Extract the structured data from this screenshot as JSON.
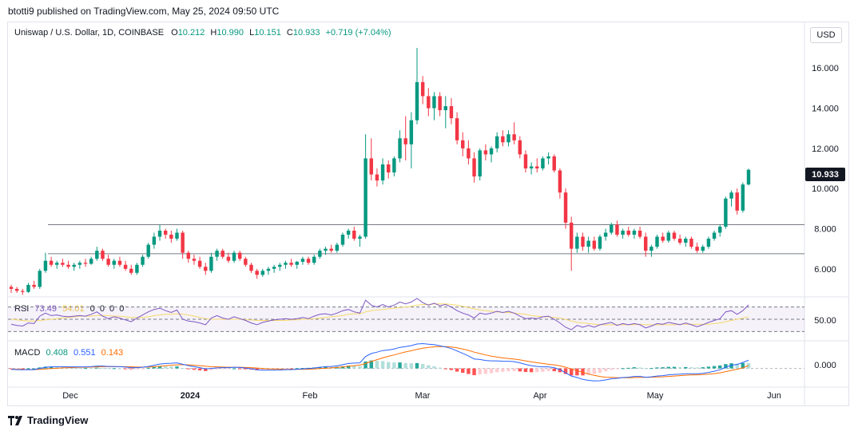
{
  "header": {
    "published": "btotti9 published on TradingView.com, May 25, 2024 09:50 UTC"
  },
  "legend": {
    "symbol": "Uniswap / U.S. Dollar, 1D, COINBASE",
    "open_label": "O",
    "open": "10.212",
    "high_label": "H",
    "high": "10.990",
    "low_label": "L",
    "low": "10.151",
    "close_label": "C",
    "close": "10.933",
    "change": "+0.719 (+7.04%)"
  },
  "currency_button": "USD",
  "last_price_tag": "10.933",
  "rsi": {
    "name": "RSI",
    "value1": "73.49",
    "value2": "54.01",
    "zeros": "0  0  0  0",
    "axis_label": "50.00"
  },
  "macd": {
    "name": "MACD",
    "value1": "0.408",
    "value2": "0.551",
    "value3": "0.143",
    "axis_label": "0.000"
  },
  "footer": {
    "brand": "TradingView"
  },
  "colors": {
    "up": "#089981",
    "down": "#f23645",
    "rsi_line": "#7e57c2",
    "rsi_ma": "#f7d96a",
    "macd_line": "#2962ff",
    "signal_line": "#ff6d00"
  },
  "chart_data": {
    "type": "candlestick",
    "price_axis": {
      "ticks": [
        "16.000",
        "14.000",
        "12.000",
        "10.000",
        "8.000",
        "6.000"
      ],
      "range": [
        4.6,
        17.6
      ]
    },
    "time_axis": [
      "Dec",
      "2024",
      "Feb",
      "Mar",
      "Apr",
      "May",
      "Jun"
    ],
    "horizontal_levels": [
      8.2,
      6.75
    ],
    "candles": [
      [
        5.1,
        5.2,
        4.8,
        5.0
      ],
      [
        5.0,
        5.1,
        4.8,
        4.9
      ],
      [
        4.9,
        5.0,
        4.7,
        4.85
      ],
      [
        4.85,
        5.3,
        4.8,
        5.2
      ],
      [
        5.2,
        5.4,
        5.0,
        5.1
      ],
      [
        5.1,
        6.0,
        5.0,
        5.9
      ],
      [
        5.9,
        6.8,
        5.8,
        6.4
      ],
      [
        6.4,
        6.6,
        6.1,
        6.2
      ],
      [
        6.2,
        6.4,
        6.0,
        6.3
      ],
      [
        6.3,
        6.5,
        6.1,
        6.2
      ],
      [
        6.2,
        6.4,
        6.0,
        6.1
      ],
      [
        6.1,
        6.3,
        5.9,
        6.2
      ],
      [
        6.2,
        6.4,
        6.0,
        6.3
      ],
      [
        6.3,
        6.5,
        6.1,
        6.25
      ],
      [
        6.25,
        6.6,
        6.2,
        6.5
      ],
      [
        6.5,
        7.1,
        6.4,
        6.9
      ],
      [
        6.9,
        7.0,
        6.4,
        6.5
      ],
      [
        6.5,
        6.7,
        6.1,
        6.2
      ],
      [
        6.2,
        6.5,
        6.0,
        6.4
      ],
      [
        6.4,
        6.6,
        6.1,
        6.2
      ],
      [
        6.2,
        6.4,
        5.9,
        6.0
      ],
      [
        6.0,
        6.2,
        5.7,
        5.8
      ],
      [
        5.8,
        6.3,
        5.7,
        6.2
      ],
      [
        6.2,
        6.7,
        6.1,
        6.6
      ],
      [
        6.6,
        7.3,
        6.5,
        7.2
      ],
      [
        7.2,
        7.8,
        7.0,
        7.6
      ],
      [
        7.6,
        8.2,
        7.4,
        7.9
      ],
      [
        7.9,
        8.0,
        7.5,
        7.7
      ],
      [
        7.7,
        7.9,
        7.3,
        7.5
      ],
      [
        7.5,
        8.0,
        7.4,
        7.8
      ],
      [
        7.8,
        7.9,
        6.5,
        6.8
      ],
      [
        6.8,
        6.9,
        6.3,
        6.5
      ],
      [
        6.5,
        6.7,
        6.2,
        6.4
      ],
      [
        6.4,
        6.6,
        6.0,
        6.1
      ],
      [
        6.1,
        6.3,
        5.7,
        5.9
      ],
      [
        5.9,
        6.8,
        5.8,
        6.6
      ],
      [
        6.6,
        7.0,
        6.4,
        6.9
      ],
      [
        6.9,
        7.0,
        6.5,
        6.6
      ],
      [
        6.6,
        6.8,
        6.3,
        6.4
      ],
      [
        6.4,
        6.9,
        6.3,
        6.8
      ],
      [
        6.8,
        6.9,
        6.4,
        6.5
      ],
      [
        6.5,
        6.6,
        6.1,
        6.2
      ],
      [
        6.2,
        6.3,
        5.8,
        5.9
      ],
      [
        5.9,
        6.0,
        5.5,
        5.7
      ],
      [
        5.7,
        6.0,
        5.6,
        5.9
      ],
      [
        5.9,
        6.1,
        5.7,
        6.0
      ],
      [
        6.0,
        6.2,
        5.8,
        6.1
      ],
      [
        6.1,
        6.3,
        5.9,
        6.2
      ],
      [
        6.2,
        6.4,
        6.0,
        6.3
      ],
      [
        6.3,
        6.5,
        6.1,
        6.2
      ],
      [
        6.2,
        6.4,
        6.0,
        6.35
      ],
      [
        6.35,
        6.6,
        6.2,
        6.5
      ],
      [
        6.5,
        6.6,
        6.2,
        6.3
      ],
      [
        6.3,
        6.7,
        6.2,
        6.6
      ],
      [
        6.6,
        7.0,
        6.5,
        6.9
      ],
      [
        6.9,
        7.1,
        6.7,
        7.0
      ],
      [
        7.0,
        7.2,
        6.8,
        6.9
      ],
      [
        6.9,
        7.3,
        6.8,
        7.2
      ],
      [
        7.2,
        7.8,
        7.1,
        7.7
      ],
      [
        7.7,
        8.0,
        7.5,
        7.9
      ],
      [
        7.9,
        8.1,
        7.4,
        7.5
      ],
      [
        7.5,
        7.7,
        7.1,
        7.6
      ],
      [
        7.6,
        12.7,
        7.5,
        11.5
      ],
      [
        11.5,
        12.5,
        10.4,
        10.7
      ],
      [
        10.7,
        11.0,
        10.1,
        10.4
      ],
      [
        10.4,
        11.5,
        10.2,
        11.2
      ],
      [
        11.2,
        11.4,
        10.5,
        10.8
      ],
      [
        10.8,
        11.6,
        10.6,
        11.5
      ],
      [
        11.5,
        12.9,
        11.3,
        12.5
      ],
      [
        12.5,
        13.6,
        11.4,
        12.2
      ],
      [
        12.2,
        13.8,
        11.0,
        13.4
      ],
      [
        13.4,
        17.0,
        13.2,
        15.3
      ],
      [
        15.3,
        15.6,
        14.2,
        14.6
      ],
      [
        14.6,
        15.0,
        13.6,
        14.0
      ],
      [
        14.0,
        14.8,
        13.4,
        14.6
      ],
      [
        14.6,
        14.8,
        13.6,
        13.9
      ],
      [
        13.9,
        14.6,
        13.0,
        14.1
      ],
      [
        14.1,
        14.5,
        13.2,
        13.5
      ],
      [
        13.5,
        13.8,
        12.2,
        12.4
      ],
      [
        12.4,
        12.8,
        11.6,
        12.0
      ],
      [
        12.0,
        12.4,
        11.2,
        11.5
      ],
      [
        11.5,
        11.8,
        10.3,
        10.6
      ],
      [
        10.6,
        12.0,
        10.4,
        11.9
      ],
      [
        11.9,
        12.2,
        11.4,
        11.7
      ],
      [
        11.7,
        12.1,
        11.3,
        12.0
      ],
      [
        12.0,
        12.8,
        11.8,
        12.6
      ],
      [
        12.6,
        12.9,
        12.1,
        12.3
      ],
      [
        12.3,
        12.9,
        12.1,
        12.7
      ],
      [
        12.7,
        13.3,
        12.2,
        12.4
      ],
      [
        12.4,
        12.6,
        11.5,
        11.7
      ],
      [
        11.7,
        11.9,
        10.8,
        11.0
      ],
      [
        11.0,
        11.3,
        10.7,
        11.1
      ],
      [
        11.1,
        11.5,
        10.8,
        11.0
      ],
      [
        11.0,
        11.6,
        10.9,
        11.5
      ],
      [
        11.5,
        11.8,
        11.2,
        11.6
      ],
      [
        11.6,
        11.7,
        10.8,
        10.9
      ],
      [
        10.9,
        11.0,
        9.5,
        9.8
      ],
      [
        9.8,
        10.0,
        8.0,
        8.3
      ],
      [
        8.3,
        8.6,
        5.9,
        7.0
      ],
      [
        7.0,
        7.8,
        6.8,
        7.6
      ],
      [
        7.6,
        7.8,
        6.9,
        7.1
      ],
      [
        7.1,
        7.6,
        6.8,
        7.4
      ],
      [
        7.4,
        7.6,
        6.9,
        7.0
      ],
      [
        7.0,
        7.7,
        6.9,
        7.6
      ],
      [
        7.6,
        8.0,
        7.4,
        7.8
      ],
      [
        7.8,
        8.3,
        7.7,
        8.2
      ],
      [
        8.2,
        8.4,
        7.6,
        7.7
      ],
      [
        7.7,
        8.0,
        7.5,
        7.9
      ],
      [
        7.9,
        8.1,
        7.6,
        7.7
      ],
      [
        7.7,
        8.0,
        7.5,
        7.9
      ],
      [
        7.9,
        8.1,
        7.5,
        7.6
      ],
      [
        7.6,
        7.8,
        6.6,
        6.9
      ],
      [
        6.9,
        7.2,
        6.6,
        7.1
      ],
      [
        7.1,
        7.7,
        7.0,
        7.6
      ],
      [
        7.6,
        7.8,
        7.3,
        7.4
      ],
      [
        7.4,
        7.9,
        7.3,
        7.8
      ],
      [
        7.8,
        7.9,
        7.4,
        7.5
      ],
      [
        7.5,
        7.7,
        7.2,
        7.3
      ],
      [
        7.3,
        7.6,
        7.1,
        7.5
      ],
      [
        7.5,
        7.6,
        7.0,
        7.1
      ],
      [
        7.1,
        7.3,
        6.8,
        6.9
      ],
      [
        6.9,
        7.2,
        6.8,
        7.1
      ],
      [
        7.1,
        7.6,
        7.0,
        7.5
      ],
      [
        7.5,
        7.9,
        7.4,
        7.8
      ],
      [
        7.8,
        8.2,
        7.6,
        8.1
      ],
      [
        8.1,
        9.6,
        8.0,
        9.5
      ],
      [
        9.5,
        9.9,
        9.1,
        9.8
      ],
      [
        9.8,
        10.0,
        8.7,
        8.9
      ],
      [
        8.9,
        10.3,
        8.8,
        10.2
      ],
      [
        10.2,
        10.99,
        10.15,
        10.933
      ]
    ],
    "rsi_range": [
      15,
      85
    ],
    "rsi_series": [
      42,
      40,
      39,
      44,
      43,
      55,
      60,
      56,
      57,
      55,
      54,
      55,
      56,
      55,
      58,
      62,
      55,
      51,
      54,
      52,
      49,
      46,
      52,
      57,
      62,
      66,
      68,
      64,
      61,
      65,
      50,
      47,
      46,
      44,
      41,
      52,
      56,
      52,
      50,
      54,
      51,
      48,
      44,
      41,
      45,
      47,
      49,
      50,
      51,
      50,
      51,
      53,
      51,
      55,
      58,
      59,
      57,
      60,
      64,
      66,
      62,
      60,
      81,
      73,
      70,
      74,
      70,
      73,
      78,
      75,
      78,
      84,
      77,
      73,
      76,
      72,
      74,
      70,
      64,
      60,
      57,
      52,
      60,
      58,
      60,
      63,
      61,
      63,
      60,
      55,
      51,
      52,
      51,
      54,
      55,
      50,
      44,
      37,
      33,
      40,
      37,
      40,
      37,
      41,
      43,
      45,
      40,
      43,
      41,
      43,
      41,
      36,
      39,
      43,
      42,
      45,
      43,
      41,
      44,
      41,
      38,
      41,
      45,
      48,
      51,
      62,
      64,
      58,
      64,
      73.49
    ],
    "rsi_ma_series": [
      50,
      49,
      48,
      47,
      47,
      48,
      49,
      50,
      51,
      52,
      53,
      54,
      55,
      55,
      55,
      56,
      56,
      56,
      55,
      55,
      54,
      53,
      53,
      53,
      54,
      56,
      57,
      58,
      58,
      59,
      58,
      57,
      55,
      53,
      51,
      50,
      50,
      50,
      50,
      50,
      50,
      49,
      49,
      48,
      48,
      48,
      48,
      48,
      48,
      49,
      49,
      50,
      50,
      51,
      52,
      53,
      54,
      55,
      56,
      58,
      59,
      59,
      62,
      64,
      65,
      66,
      67,
      68,
      69,
      70,
      71,
      73,
      74,
      74,
      75,
      75,
      75,
      74,
      73,
      71,
      69,
      67,
      65,
      64,
      63,
      62,
      61,
      61,
      60,
      59,
      58,
      56,
      55,
      54,
      54,
      53,
      52,
      50,
      47,
      45,
      44,
      43,
      42,
      41,
      41,
      41,
      41,
      41,
      41,
      41,
      42,
      41,
      41,
      41,
      41,
      41,
      41,
      42,
      42,
      42,
      42,
      42,
      42,
      43,
      44,
      46,
      48,
      50,
      52,
      54.01
    ],
    "macd_range": [
      -0.9,
      1.35
    ],
    "macd_series": [
      -0.05,
      -0.06,
      -0.07,
      -0.06,
      -0.06,
      0.0,
      0.06,
      0.08,
      0.09,
      0.09,
      0.08,
      0.08,
      0.08,
      0.08,
      0.09,
      0.12,
      0.12,
      0.1,
      0.1,
      0.09,
      0.07,
      0.04,
      0.04,
      0.06,
      0.1,
      0.16,
      0.22,
      0.25,
      0.26,
      0.28,
      0.21,
      0.14,
      0.09,
      0.04,
      -0.02,
      0.0,
      0.03,
      0.04,
      0.04,
      0.06,
      0.05,
      0.02,
      -0.02,
      -0.07,
      -0.09,
      -0.09,
      -0.09,
      -0.08,
      -0.06,
      -0.06,
      -0.04,
      -0.02,
      -0.01,
      0.02,
      0.06,
      0.09,
      0.1,
      0.13,
      0.19,
      0.25,
      0.27,
      0.28,
      0.6,
      0.75,
      0.82,
      0.9,
      0.93,
      0.98,
      1.06,
      1.1,
      1.15,
      1.23,
      1.25,
      1.22,
      1.2,
      1.14,
      1.08,
      1.0,
      0.88,
      0.76,
      0.63,
      0.48,
      0.45,
      0.4,
      0.38,
      0.38,
      0.36,
      0.36,
      0.34,
      0.28,
      0.2,
      0.14,
      0.1,
      0.08,
      0.08,
      0.04,
      -0.06,
      -0.22,
      -0.38,
      -0.46,
      -0.55,
      -0.6,
      -0.63,
      -0.62,
      -0.58,
      -0.52,
      -0.5,
      -0.46,
      -0.44,
      -0.4,
      -0.4,
      -0.44,
      -0.42,
      -0.38,
      -0.36,
      -0.32,
      -0.3,
      -0.29,
      -0.27,
      -0.27,
      -0.27,
      -0.25,
      -0.2,
      -0.14,
      -0.07,
      0.06,
      0.16,
      0.2,
      0.3,
      0.408
    ],
    "signal_series": [
      -0.04,
      -0.05,
      -0.05,
      -0.06,
      -0.06,
      -0.05,
      -0.03,
      -0.01,
      0.01,
      0.03,
      0.04,
      0.05,
      0.06,
      0.06,
      0.07,
      0.08,
      0.09,
      0.09,
      0.09,
      0.09,
      0.09,
      0.08,
      0.07,
      0.07,
      0.07,
      0.09,
      0.11,
      0.14,
      0.16,
      0.18,
      0.19,
      0.18,
      0.16,
      0.14,
      0.11,
      0.09,
      0.08,
      0.07,
      0.06,
      0.06,
      0.06,
      0.05,
      0.04,
      0.02,
      0.0,
      -0.02,
      -0.03,
      -0.04,
      -0.05,
      -0.05,
      -0.05,
      -0.04,
      -0.04,
      -0.03,
      -0.01,
      0.01,
      0.03,
      0.05,
      0.08,
      0.11,
      0.14,
      0.17,
      0.25,
      0.35,
      0.44,
      0.53,
      0.61,
      0.68,
      0.76,
      0.83,
      0.89,
      0.96,
      1.02,
      1.06,
      1.09,
      1.1,
      1.1,
      1.08,
      1.04,
      0.98,
      0.91,
      0.82,
      0.75,
      0.68,
      0.62,
      0.57,
      0.53,
      0.5,
      0.47,
      0.43,
      0.38,
      0.33,
      0.29,
      0.25,
      0.21,
      0.18,
      0.13,
      0.06,
      -0.03,
      -0.11,
      -0.2,
      -0.28,
      -0.35,
      -0.4,
      -0.44,
      -0.45,
      -0.47,
      -0.47,
      -0.47,
      -0.46,
      -0.45,
      -0.45,
      -0.44,
      -0.43,
      -0.42,
      -0.4,
      -0.38,
      -0.36,
      -0.34,
      -0.33,
      -0.32,
      -0.31,
      -0.29,
      -0.26,
      -0.22,
      -0.16,
      -0.1,
      -0.04,
      0.03,
      0.143
    ]
  }
}
